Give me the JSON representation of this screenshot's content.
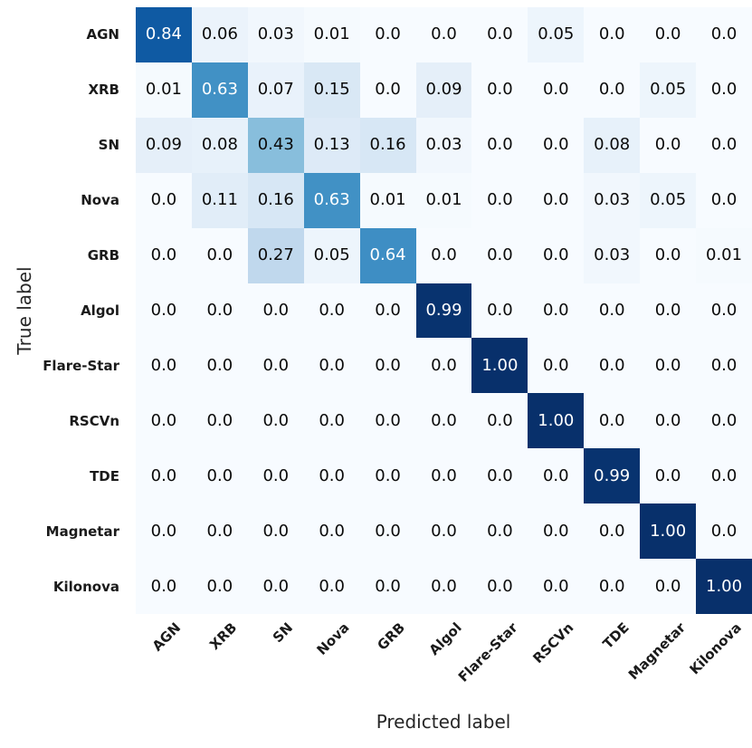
{
  "chart_data": {
    "type": "heatmap",
    "title": "",
    "xlabel": "Predicted label",
    "ylabel": "True label",
    "categories": [
      "AGN",
      "XRB",
      "SN",
      "Nova",
      "GRB",
      "Algol",
      "Flare-Star",
      "RSCVn",
      "TDE",
      "Magnetar",
      "Kilonova"
    ],
    "matrix_display": [
      [
        "0.84",
        "0.06",
        "0.03",
        "0.01",
        "0.0",
        "0.0",
        "0.0",
        "0.05",
        "0.0",
        "0.0",
        "0.0"
      ],
      [
        "0.01",
        "0.63",
        "0.07",
        "0.15",
        "0.0",
        "0.09",
        "0.0",
        "0.0",
        "0.0",
        "0.05",
        "0.0"
      ],
      [
        "0.09",
        "0.08",
        "0.43",
        "0.13",
        "0.16",
        "0.03",
        "0.0",
        "0.0",
        "0.08",
        "0.0",
        "0.0"
      ],
      [
        "0.0",
        "0.11",
        "0.16",
        "0.63",
        "0.01",
        "0.01",
        "0.0",
        "0.0",
        "0.03",
        "0.05",
        "0.0"
      ],
      [
        "0.0",
        "0.0",
        "0.27",
        "0.05",
        "0.64",
        "0.0",
        "0.0",
        "0.0",
        "0.03",
        "0.0",
        "0.01"
      ],
      [
        "0.0",
        "0.0",
        "0.0",
        "0.0",
        "0.0",
        "0.99",
        "0.0",
        "0.0",
        "0.0",
        "0.0",
        "0.0"
      ],
      [
        "0.0",
        "0.0",
        "0.0",
        "0.0",
        "0.0",
        "0.0",
        "1.00",
        "0.0",
        "0.0",
        "0.0",
        "0.0"
      ],
      [
        "0.0",
        "0.0",
        "0.0",
        "0.0",
        "0.0",
        "0.0",
        "0.0",
        "1.00",
        "0.0",
        "0.0",
        "0.0"
      ],
      [
        "0.0",
        "0.0",
        "0.0",
        "0.0",
        "0.0",
        "0.0",
        "0.0",
        "0.0",
        "0.99",
        "0.0",
        "0.0"
      ],
      [
        "0.0",
        "0.0",
        "0.0",
        "0.0",
        "0.0",
        "0.0",
        "0.0",
        "0.0",
        "0.0",
        "1.00",
        "0.0"
      ],
      [
        "0.0",
        "0.0",
        "0.0",
        "0.0",
        "0.0",
        "0.0",
        "0.0",
        "0.0",
        "0.0",
        "0.0",
        "1.00"
      ]
    ],
    "value_range": [
      0,
      1
    ],
    "text_color_threshold": 0.5,
    "grid": false,
    "legend": "none",
    "colormap": {
      "name": "Blues",
      "anchors": [
        [
          0.0,
          "#f7fbff"
        ],
        [
          0.125,
          "#deebf7"
        ],
        [
          0.25,
          "#c6dbef"
        ],
        [
          0.375,
          "#9ecae1"
        ],
        [
          0.5,
          "#6baed6"
        ],
        [
          0.625,
          "#4292c6"
        ],
        [
          0.75,
          "#2171b5"
        ],
        [
          0.875,
          "#08519c"
        ],
        [
          1.0,
          "#08306b"
        ]
      ],
      "cell_text_dark": "#0a0a0a",
      "cell_text_light": "#ffffff"
    }
  }
}
